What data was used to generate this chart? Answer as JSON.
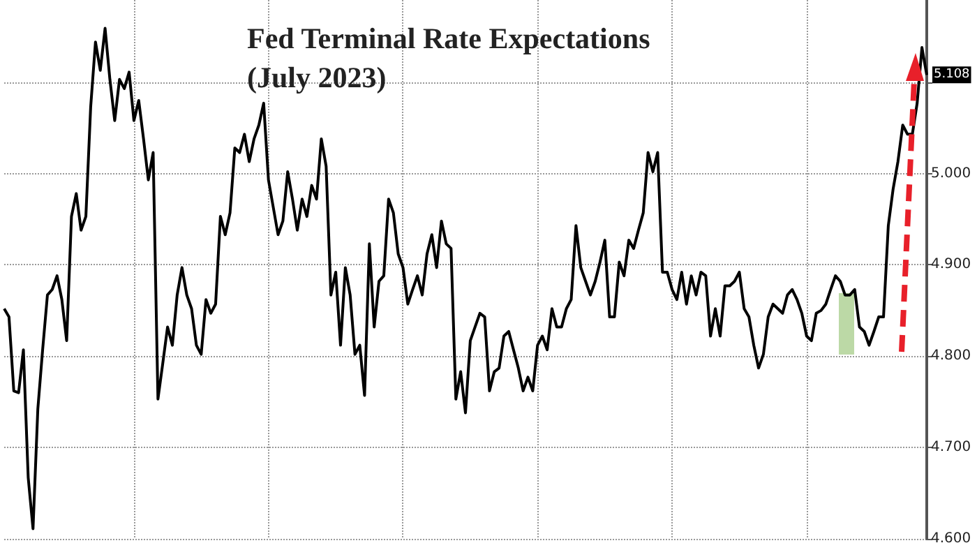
{
  "chart_data": {
    "type": "line",
    "title": "Fed Terminal Rate Expectations",
    "subtitle": "(July 2023)",
    "categories": [
      null,
      null,
      null,
      null,
      null,
      null,
      null,
      null,
      null,
      null,
      null,
      null,
      null,
      null,
      null,
      null,
      null,
      null,
      null,
      null,
      null,
      null,
      null,
      null,
      null,
      null,
      null,
      null,
      null,
      null,
      null,
      null,
      null,
      null,
      null,
      null,
      null,
      null,
      null,
      null,
      null,
      null,
      null,
      null,
      null,
      null,
      null,
      null,
      null,
      null,
      null,
      null,
      null,
      null,
      null,
      null,
      null,
      null,
      null,
      null,
      null,
      null,
      null,
      null,
      null,
      null,
      null,
      null,
      null,
      null,
      null,
      null,
      null,
      null,
      null,
      null,
      null,
      null,
      null,
      null,
      null,
      null,
      null,
      null,
      null,
      null,
      null,
      null,
      null,
      null,
      null,
      null,
      null,
      null,
      null,
      null,
      null,
      null,
      null,
      null,
      null,
      null,
      null,
      null,
      null,
      null,
      null,
      null,
      null,
      null,
      null,
      null,
      null,
      null,
      null,
      null,
      null,
      null,
      null,
      null,
      null,
      null,
      null,
      null,
      null,
      null,
      null,
      null,
      null,
      null,
      null,
      null,
      null,
      null,
      null,
      null,
      null,
      null,
      null,
      null,
      null,
      null,
      null,
      null,
      null,
      null,
      null,
      null,
      null,
      null,
      null,
      null,
      null,
      null,
      null,
      null,
      null,
      null,
      null,
      null,
      null,
      null,
      null,
      null,
      null,
      null,
      null,
      null,
      null,
      null,
      null,
      null,
      null,
      null,
      null,
      null,
      null,
      null,
      null,
      null,
      null,
      null,
      null,
      null,
      null,
      null,
      null,
      null,
      null,
      null,
      null,
      null,
      null
    ],
    "series": [
      {
        "color": "#000000",
        "values": [
          4.852,
          4.843,
          4.762,
          4.76,
          4.807,
          4.667,
          4.611,
          4.742,
          4.807,
          4.867,
          4.873,
          4.888,
          4.862,
          4.817,
          4.953,
          4.978,
          4.938,
          4.953,
          5.073,
          5.144,
          5.113,
          5.159,
          5.103,
          5.058,
          5.103,
          5.093,
          5.111,
          5.058,
          5.08,
          5.038,
          4.993,
          5.023,
          4.753,
          4.792,
          4.832,
          4.812,
          4.867,
          4.897,
          4.867,
          4.852,
          4.812,
          4.802,
          4.862,
          4.847,
          4.857,
          4.953,
          4.933,
          4.957,
          5.028,
          5.023,
          5.043,
          5.013,
          5.038,
          5.053,
          5.077,
          4.993,
          4.963,
          4.933,
          4.948,
          5.002,
          4.972,
          4.938,
          4.972,
          4.953,
          4.987,
          4.972,
          5.038,
          5.008,
          4.867,
          4.892,
          4.812,
          4.897,
          4.867,
          4.802,
          4.812,
          4.757,
          4.923,
          4.832,
          4.882,
          4.888,
          4.972,
          4.957,
          4.912,
          4.897,
          4.857,
          4.873,
          4.888,
          4.867,
          4.912,
          4.933,
          4.897,
          4.948,
          4.923,
          4.918,
          4.753,
          4.783,
          4.738,
          4.817,
          4.832,
          4.847,
          4.843,
          4.762,
          4.783,
          4.787,
          4.822,
          4.827,
          4.807,
          4.787,
          4.762,
          4.777,
          4.762,
          4.812,
          4.822,
          4.807,
          4.852,
          4.832,
          4.832,
          4.852,
          4.862,
          4.943,
          4.897,
          4.882,
          4.867,
          4.882,
          4.903,
          4.927,
          4.843,
          4.843,
          4.903,
          4.888,
          4.927,
          4.918,
          4.938,
          4.957,
          5.023,
          5.002,
          5.023,
          4.892,
          4.892,
          4.873,
          4.862,
          4.892,
          4.857,
          4.888,
          4.867,
          4.892,
          4.888,
          4.822,
          4.852,
          4.822,
          4.877,
          4.877,
          4.882,
          4.892,
          4.852,
          4.843,
          4.812,
          4.787,
          4.802,
          4.843,
          4.857,
          4.852,
          4.847,
          4.867,
          4.873,
          4.862,
          4.847,
          4.822,
          4.817,
          4.847,
          4.85,
          4.857,
          4.873,
          4.888,
          4.882,
          4.867,
          4.867,
          4.873,
          4.832,
          4.827,
          4.812,
          4.827,
          4.843,
          4.843,
          4.943,
          4.983,
          5.013,
          5.053,
          5.043,
          5.043,
          5.077,
          5.138,
          5.108
        ],
        "value_labels": [
          null,
          null,
          null,
          null,
          null,
          null,
          null,
          null,
          null,
          null,
          null,
          null,
          null,
          null,
          null,
          null,
          null,
          null,
          null,
          null,
          null,
          null,
          null,
          null,
          null,
          null,
          null,
          null,
          null,
          null,
          null,
          null,
          null,
          null,
          null,
          null,
          null,
          null,
          null,
          null,
          null,
          null,
          null,
          null,
          null,
          null,
          null,
          null,
          null,
          null,
          null,
          null,
          null,
          null,
          null,
          null,
          null,
          null,
          null,
          null,
          null,
          null,
          null,
          null,
          null,
          null,
          null,
          null,
          null,
          null,
          null,
          null,
          null,
          null,
          null,
          null,
          null,
          null,
          null,
          null,
          null,
          null,
          null,
          null,
          null,
          null,
          null,
          null,
          null,
          null,
          null,
          null,
          null,
          null,
          null,
          null,
          null,
          null,
          null,
          null,
          null,
          null,
          null,
          null,
          null,
          null,
          null,
          null,
          null,
          null,
          null,
          null,
          null,
          null,
          null,
          null,
          null,
          null,
          null,
          null,
          null,
          null,
          null,
          null,
          null,
          null,
          null,
          null,
          null,
          null,
          null,
          null,
          null,
          null,
          null,
          null,
          null,
          null,
          null,
          null,
          null,
          null,
          null,
          null,
          null,
          null,
          null,
          null,
          null,
          null,
          null,
          null,
          null,
          null,
          null,
          null,
          null,
          null,
          null,
          null,
          null,
          null,
          null,
          null,
          null,
          null,
          null,
          null,
          null,
          null,
          null,
          null,
          null,
          null,
          null,
          null,
          null,
          null,
          null,
          null,
          null,
          null,
          null,
          null,
          null,
          null,
          null,
          null,
          null,
          null,
          null,
          null,
          "5.108"
        ]
      }
    ],
    "ylim": [
      4.6,
      5.19
    ],
    "yticks": [
      {
        "value": 4.6,
        "label": "4.600"
      },
      {
        "value": 4.7,
        "label": "4.700"
      },
      {
        "value": 4.8,
        "label": "4.800"
      },
      {
        "value": 4.9,
        "label": "4.900"
      },
      {
        "value": 5.0,
        "label": "5.000"
      },
      {
        "value": 5.1,
        "label": null
      }
    ],
    "grid": true,
    "marker": "none",
    "line_style": "solid"
  }
}
